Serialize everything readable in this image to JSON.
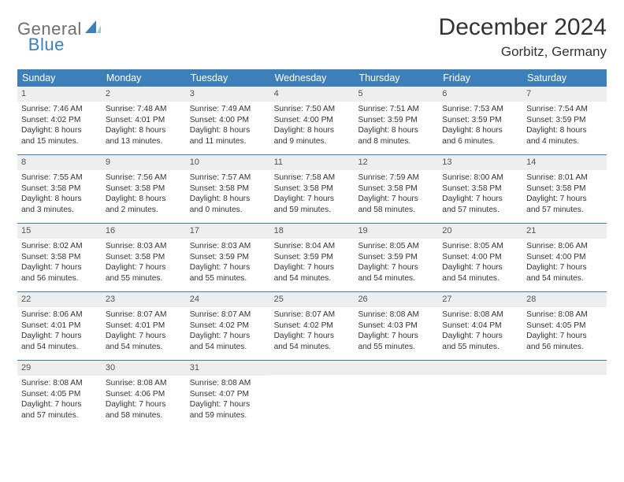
{
  "logo": {
    "part1": "General",
    "part2": "Blue"
  },
  "title": "December 2024",
  "location": "Gorbitz, Germany",
  "colors": {
    "header_bg": "#3d7fb8",
    "daynum_bg": "#eeeeee",
    "rule": "#3d7fb8",
    "text": "#333333",
    "logo_gray": "#6f6f6f",
    "logo_blue": "#3d7fb8"
  },
  "days_of_week": [
    "Sunday",
    "Monday",
    "Tuesday",
    "Wednesday",
    "Thursday",
    "Friday",
    "Saturday"
  ],
  "weeks": [
    [
      {
        "n": "1",
        "sr": "Sunrise: 7:46 AM",
        "ss": "Sunset: 4:02 PM",
        "d1": "Daylight: 8 hours",
        "d2": "and 15 minutes."
      },
      {
        "n": "2",
        "sr": "Sunrise: 7:48 AM",
        "ss": "Sunset: 4:01 PM",
        "d1": "Daylight: 8 hours",
        "d2": "and 13 minutes."
      },
      {
        "n": "3",
        "sr": "Sunrise: 7:49 AM",
        "ss": "Sunset: 4:00 PM",
        "d1": "Daylight: 8 hours",
        "d2": "and 11 minutes."
      },
      {
        "n": "4",
        "sr": "Sunrise: 7:50 AM",
        "ss": "Sunset: 4:00 PM",
        "d1": "Daylight: 8 hours",
        "d2": "and 9 minutes."
      },
      {
        "n": "5",
        "sr": "Sunrise: 7:51 AM",
        "ss": "Sunset: 3:59 PM",
        "d1": "Daylight: 8 hours",
        "d2": "and 8 minutes."
      },
      {
        "n": "6",
        "sr": "Sunrise: 7:53 AM",
        "ss": "Sunset: 3:59 PM",
        "d1": "Daylight: 8 hours",
        "d2": "and 6 minutes."
      },
      {
        "n": "7",
        "sr": "Sunrise: 7:54 AM",
        "ss": "Sunset: 3:59 PM",
        "d1": "Daylight: 8 hours",
        "d2": "and 4 minutes."
      }
    ],
    [
      {
        "n": "8",
        "sr": "Sunrise: 7:55 AM",
        "ss": "Sunset: 3:58 PM",
        "d1": "Daylight: 8 hours",
        "d2": "and 3 minutes."
      },
      {
        "n": "9",
        "sr": "Sunrise: 7:56 AM",
        "ss": "Sunset: 3:58 PM",
        "d1": "Daylight: 8 hours",
        "d2": "and 2 minutes."
      },
      {
        "n": "10",
        "sr": "Sunrise: 7:57 AM",
        "ss": "Sunset: 3:58 PM",
        "d1": "Daylight: 8 hours",
        "d2": "and 0 minutes."
      },
      {
        "n": "11",
        "sr": "Sunrise: 7:58 AM",
        "ss": "Sunset: 3:58 PM",
        "d1": "Daylight: 7 hours",
        "d2": "and 59 minutes."
      },
      {
        "n": "12",
        "sr": "Sunrise: 7:59 AM",
        "ss": "Sunset: 3:58 PM",
        "d1": "Daylight: 7 hours",
        "d2": "and 58 minutes."
      },
      {
        "n": "13",
        "sr": "Sunrise: 8:00 AM",
        "ss": "Sunset: 3:58 PM",
        "d1": "Daylight: 7 hours",
        "d2": "and 57 minutes."
      },
      {
        "n": "14",
        "sr": "Sunrise: 8:01 AM",
        "ss": "Sunset: 3:58 PM",
        "d1": "Daylight: 7 hours",
        "d2": "and 57 minutes."
      }
    ],
    [
      {
        "n": "15",
        "sr": "Sunrise: 8:02 AM",
        "ss": "Sunset: 3:58 PM",
        "d1": "Daylight: 7 hours",
        "d2": "and 56 minutes."
      },
      {
        "n": "16",
        "sr": "Sunrise: 8:03 AM",
        "ss": "Sunset: 3:58 PM",
        "d1": "Daylight: 7 hours",
        "d2": "and 55 minutes."
      },
      {
        "n": "17",
        "sr": "Sunrise: 8:03 AM",
        "ss": "Sunset: 3:59 PM",
        "d1": "Daylight: 7 hours",
        "d2": "and 55 minutes."
      },
      {
        "n": "18",
        "sr": "Sunrise: 8:04 AM",
        "ss": "Sunset: 3:59 PM",
        "d1": "Daylight: 7 hours",
        "d2": "and 54 minutes."
      },
      {
        "n": "19",
        "sr": "Sunrise: 8:05 AM",
        "ss": "Sunset: 3:59 PM",
        "d1": "Daylight: 7 hours",
        "d2": "and 54 minutes."
      },
      {
        "n": "20",
        "sr": "Sunrise: 8:05 AM",
        "ss": "Sunset: 4:00 PM",
        "d1": "Daylight: 7 hours",
        "d2": "and 54 minutes."
      },
      {
        "n": "21",
        "sr": "Sunrise: 8:06 AM",
        "ss": "Sunset: 4:00 PM",
        "d1": "Daylight: 7 hours",
        "d2": "and 54 minutes."
      }
    ],
    [
      {
        "n": "22",
        "sr": "Sunrise: 8:06 AM",
        "ss": "Sunset: 4:01 PM",
        "d1": "Daylight: 7 hours",
        "d2": "and 54 minutes."
      },
      {
        "n": "23",
        "sr": "Sunrise: 8:07 AM",
        "ss": "Sunset: 4:01 PM",
        "d1": "Daylight: 7 hours",
        "d2": "and 54 minutes."
      },
      {
        "n": "24",
        "sr": "Sunrise: 8:07 AM",
        "ss": "Sunset: 4:02 PM",
        "d1": "Daylight: 7 hours",
        "d2": "and 54 minutes."
      },
      {
        "n": "25",
        "sr": "Sunrise: 8:07 AM",
        "ss": "Sunset: 4:02 PM",
        "d1": "Daylight: 7 hours",
        "d2": "and 54 minutes."
      },
      {
        "n": "26",
        "sr": "Sunrise: 8:08 AM",
        "ss": "Sunset: 4:03 PM",
        "d1": "Daylight: 7 hours",
        "d2": "and 55 minutes."
      },
      {
        "n": "27",
        "sr": "Sunrise: 8:08 AM",
        "ss": "Sunset: 4:04 PM",
        "d1": "Daylight: 7 hours",
        "d2": "and 55 minutes."
      },
      {
        "n": "28",
        "sr": "Sunrise: 8:08 AM",
        "ss": "Sunset: 4:05 PM",
        "d1": "Daylight: 7 hours",
        "d2": "and 56 minutes."
      }
    ],
    [
      {
        "n": "29",
        "sr": "Sunrise: 8:08 AM",
        "ss": "Sunset: 4:05 PM",
        "d1": "Daylight: 7 hours",
        "d2": "and 57 minutes."
      },
      {
        "n": "30",
        "sr": "Sunrise: 8:08 AM",
        "ss": "Sunset: 4:06 PM",
        "d1": "Daylight: 7 hours",
        "d2": "and 58 minutes."
      },
      {
        "n": "31",
        "sr": "Sunrise: 8:08 AM",
        "ss": "Sunset: 4:07 PM",
        "d1": "Daylight: 7 hours",
        "d2": "and 59 minutes."
      },
      {
        "n": "",
        "sr": "",
        "ss": "",
        "d1": "",
        "d2": ""
      },
      {
        "n": "",
        "sr": "",
        "ss": "",
        "d1": "",
        "d2": ""
      },
      {
        "n": "",
        "sr": "",
        "ss": "",
        "d1": "",
        "d2": ""
      },
      {
        "n": "",
        "sr": "",
        "ss": "",
        "d1": "",
        "d2": ""
      }
    ]
  ]
}
